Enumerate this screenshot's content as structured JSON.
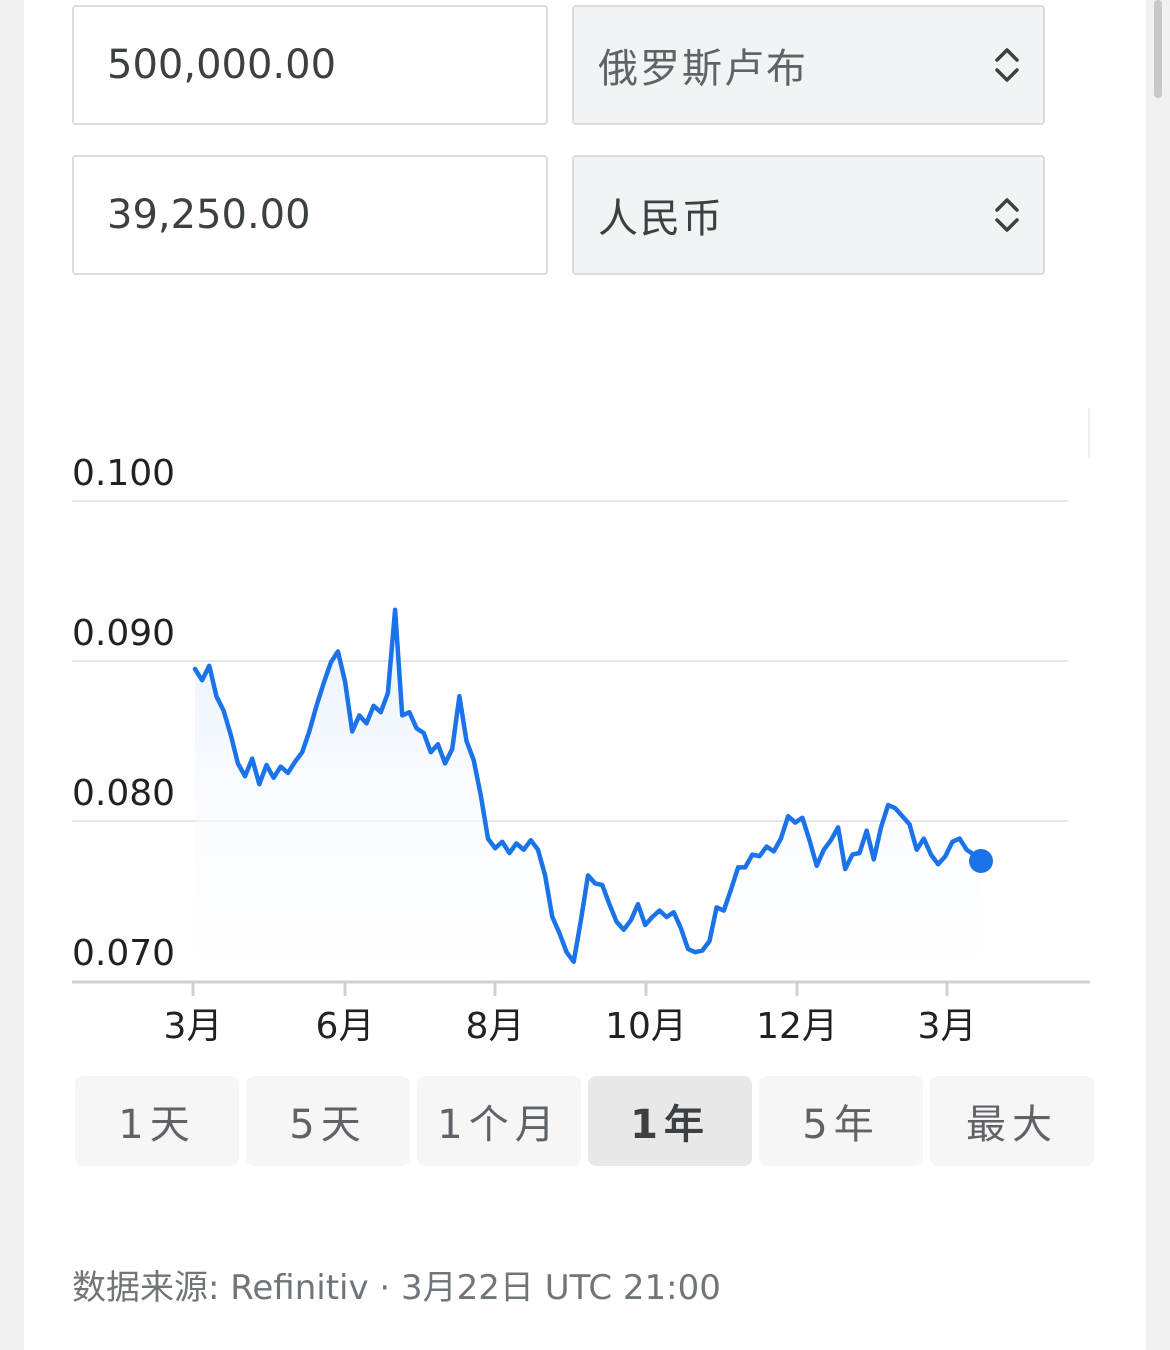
{
  "converter": {
    "from_amount": "500,000.00",
    "from_currency": "俄罗斯卢布",
    "to_amount": "39,250.00",
    "to_currency": "人民币"
  },
  "colors": {
    "line": "#1a73e8",
    "area_top": "#e8f0fe",
    "grid": "#e6e6e6",
    "active_range_bg": "#e8e8e8"
  },
  "chart_data": {
    "type": "line",
    "y_ticks": [
      "0.100",
      "0.090",
      "0.080",
      "0.070"
    ],
    "ylim": [
      0.069,
      0.1
    ],
    "x_ticks": [
      "3月",
      "6月",
      "8月",
      "10月",
      "12月",
      "3月"
    ],
    "grid": true,
    "series": [
      {
        "values": [
          0.0895,
          0.0888,
          0.0897,
          0.0878,
          0.0869,
          0.0854,
          0.0836,
          0.0828,
          0.0839,
          0.0823,
          0.0835,
          0.0827,
          0.0834,
          0.083,
          0.0837,
          0.0843,
          0.0856,
          0.0872,
          0.0886,
          0.0899,
          0.0906,
          0.0887,
          0.0856,
          0.0866,
          0.0861,
          0.0872,
          0.0868,
          0.088,
          0.0932,
          0.0866,
          0.0868,
          0.0858,
          0.0855,
          0.0843,
          0.0848,
          0.0836,
          0.0845,
          0.0878,
          0.085,
          0.0838,
          0.0816,
          0.0789,
          0.0783,
          0.0787,
          0.078,
          0.0786,
          0.0782,
          0.0788,
          0.0782,
          0.0766,
          0.074,
          0.073,
          0.0718,
          0.0712,
          0.0738,
          0.0766,
          0.0761,
          0.076,
          0.0748,
          0.0737,
          0.0732,
          0.0738,
          0.0748,
          0.0735,
          0.074,
          0.0744,
          0.074,
          0.0743,
          0.0733,
          0.072,
          0.0718,
          0.0719,
          0.0725,
          0.0746,
          0.0744,
          0.0757,
          0.0771,
          0.0771,
          0.0779,
          0.0778,
          0.0784,
          0.0781,
          0.0789,
          0.0803,
          0.0799,
          0.0802,
          0.0788,
          0.0772,
          0.0782,
          0.0788,
          0.0796,
          0.077,
          0.0779,
          0.078,
          0.0794,
          0.0776,
          0.0796,
          0.081,
          0.0808,
          0.0803,
          0.0798,
          0.0782,
          0.0789,
          0.0779,
          0.0773,
          0.0778,
          0.0787,
          0.0789,
          0.0782,
          0.0779,
          0.0775
        ]
      }
    ]
  },
  "ranges": {
    "items": [
      "1天",
      "5天",
      "1个月",
      "1年",
      "5年",
      "最大"
    ],
    "active": "1年"
  },
  "footer": {
    "source": "数据来源: Refinitiv · 3月22日 UTC 21:00"
  }
}
